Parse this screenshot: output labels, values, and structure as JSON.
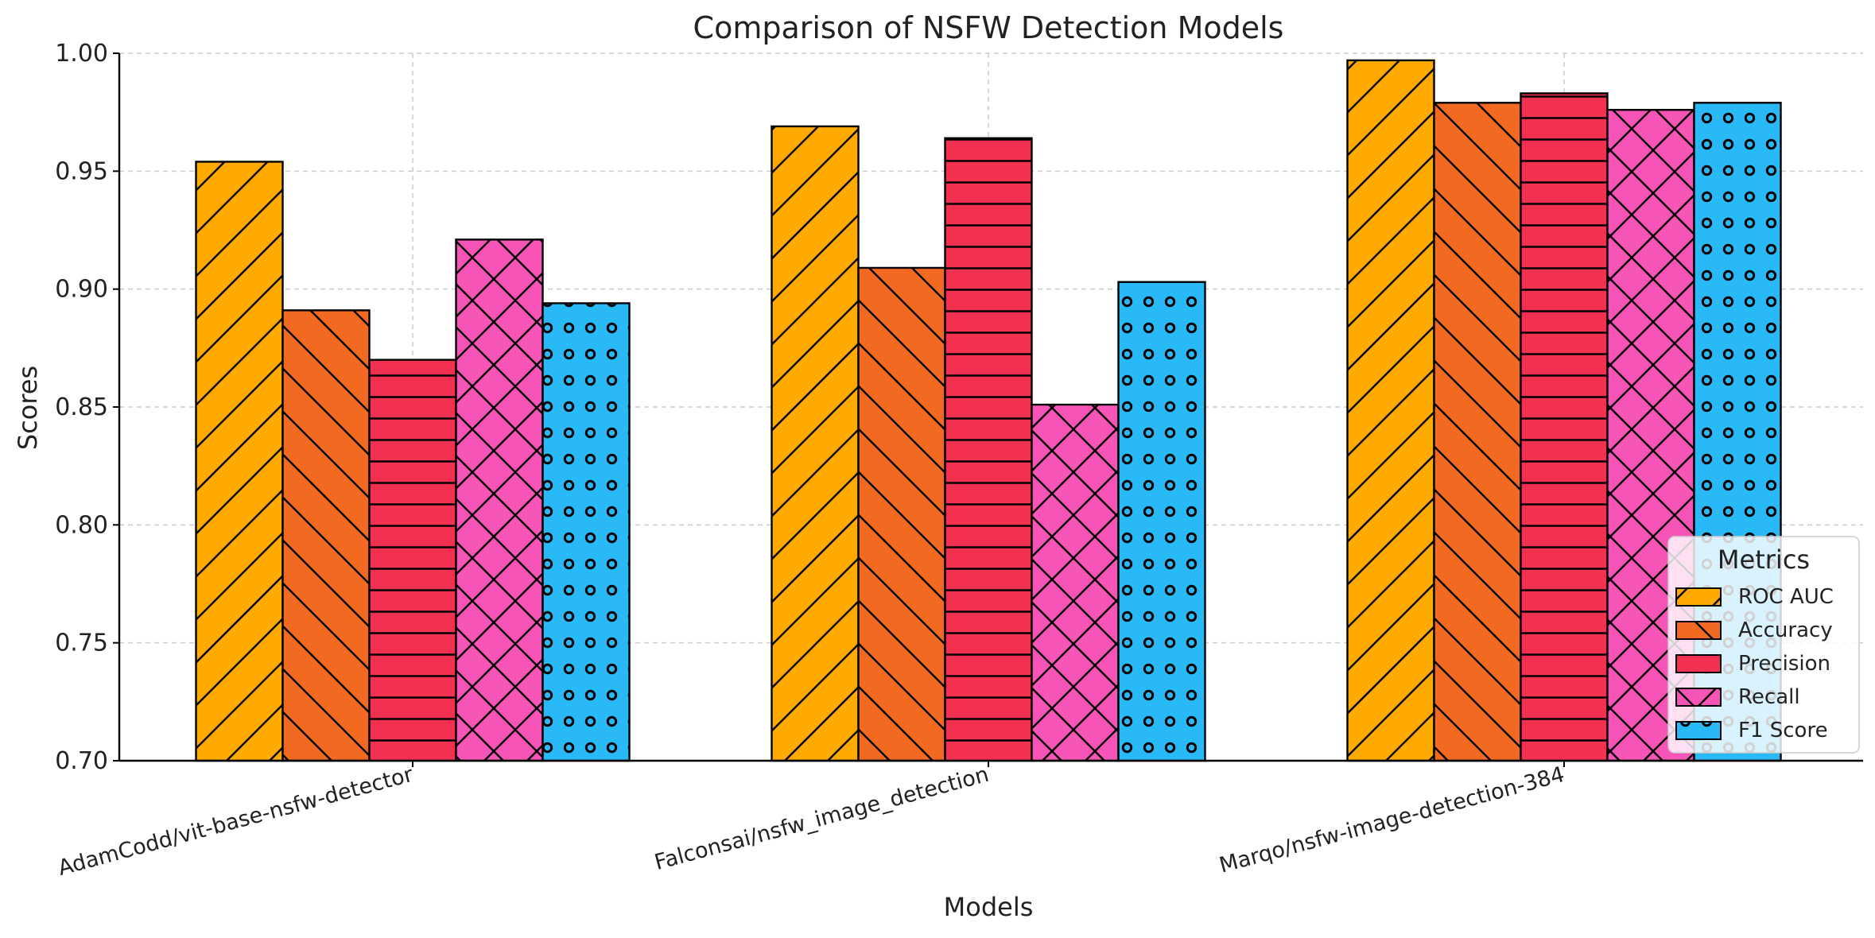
{
  "chart_data": {
    "type": "bar",
    "title": "Comparison of NSFW Detection Models",
    "xlabel": "Models",
    "ylabel": "Scores",
    "ylim": [
      0.7,
      1.0
    ],
    "yticks": [
      0.7,
      0.75,
      0.8,
      0.85,
      0.9,
      0.95,
      1.0
    ],
    "ytick_labels": [
      "0.70",
      "0.75",
      "0.80",
      "0.85",
      "0.90",
      "0.95",
      "1.00"
    ],
    "grid": true,
    "legend_title": "Metrics",
    "legend_position": "lower-right",
    "categories": [
      "AdamCodd/vit-base-nsfw-detector",
      "Falconsai/nsfw_image_detection",
      "Marqo/nsfw-image-detection-384"
    ],
    "series": [
      {
        "name": "ROC AUC",
        "color": "#FFAA00",
        "pattern": "diagonal-forward",
        "values": [
          0.954,
          0.969,
          0.997
        ]
      },
      {
        "name": "Accuracy",
        "color": "#F26A21",
        "pattern": "diagonal-back",
        "values": [
          0.891,
          0.909,
          0.979
        ]
      },
      {
        "name": "Precision",
        "color": "#F2304F",
        "pattern": "horizontal",
        "values": [
          0.87,
          0.964,
          0.983
        ]
      },
      {
        "name": "Recall",
        "color": "#F754B8",
        "pattern": "crosshatch",
        "values": [
          0.921,
          0.851,
          0.976
        ]
      },
      {
        "name": "F1 Score",
        "color": "#29B9F6",
        "pattern": "circles",
        "values": [
          0.894,
          0.903,
          0.979
        ]
      }
    ]
  }
}
